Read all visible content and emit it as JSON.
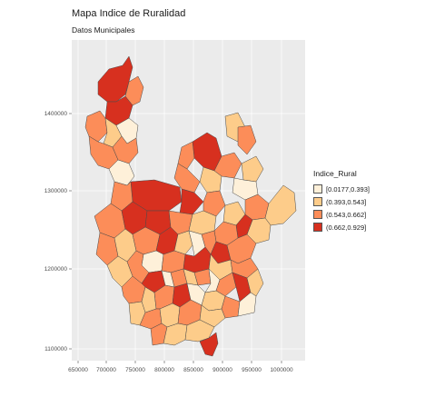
{
  "title": "Mapa Indice de Ruralidad",
  "subtitle": "Datos Municipales",
  "y_ticks": [
    "1100000",
    "1200000",
    "1300000",
    "1400000"
  ],
  "x_ticks": [
    "650000",
    "700000",
    "750000",
    "800000",
    "850000",
    "900000",
    "950000",
    "1000000"
  ],
  "legend": {
    "title": "Indice_Rural",
    "items": [
      {
        "label": "[0.0177,0.393]",
        "color": "#fef0d9"
      },
      {
        "label": "(0.393,0.543]",
        "color": "#fdcc8a"
      },
      {
        "label": "(0.543,0.662]",
        "color": "#fc8d59"
      },
      {
        "label": "(0.662,0.929]",
        "color": "#d7301f"
      }
    ]
  },
  "colors": {
    "panel": "#ebebeb",
    "grid": "#ffffff",
    "border": "#4a4a4a"
  }
}
